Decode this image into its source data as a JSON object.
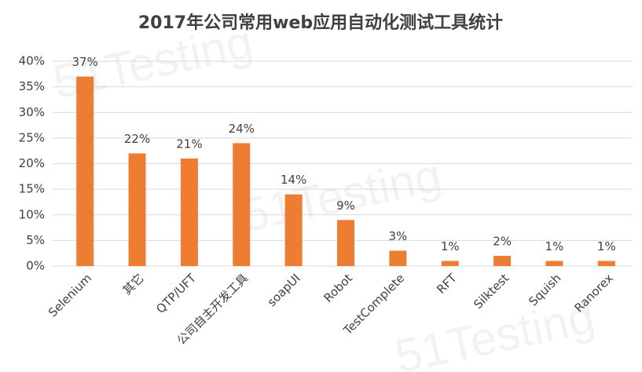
{
  "chart_data": {
    "type": "bar",
    "title": "2017年公司常用web应用自动化测试工具统计",
    "watermark": "51Testing",
    "categories": [
      "Selenium",
      "其它",
      "QTP/UFT",
      "公司自主开发工具",
      "soapUI",
      "Robot",
      "TestComplete",
      "RFT",
      "Silktest",
      "Squish",
      "Ranorex"
    ],
    "values": [
      37,
      22,
      21,
      24,
      14,
      9,
      3,
      1,
      2,
      1,
      1
    ],
    "value_labels": [
      "37%",
      "22%",
      "21%",
      "24%",
      "14%",
      "9%",
      "3%",
      "1%",
      "2%",
      "1%",
      "1%"
    ],
    "color": "#ed7d31",
    "ylim": [
      0,
      40
    ],
    "yticks": [
      {
        "value": 0,
        "label": "0%"
      },
      {
        "value": 5,
        "label": "5%"
      },
      {
        "value": 10,
        "label": "10%"
      },
      {
        "value": 15,
        "label": "15%"
      },
      {
        "value": 20,
        "label": "20%"
      },
      {
        "value": 25,
        "label": "25%"
      },
      {
        "value": 30,
        "label": "30%"
      },
      {
        "value": 35,
        "label": "35%"
      },
      {
        "value": 40,
        "label": "40%"
      }
    ],
    "grid": true
  }
}
